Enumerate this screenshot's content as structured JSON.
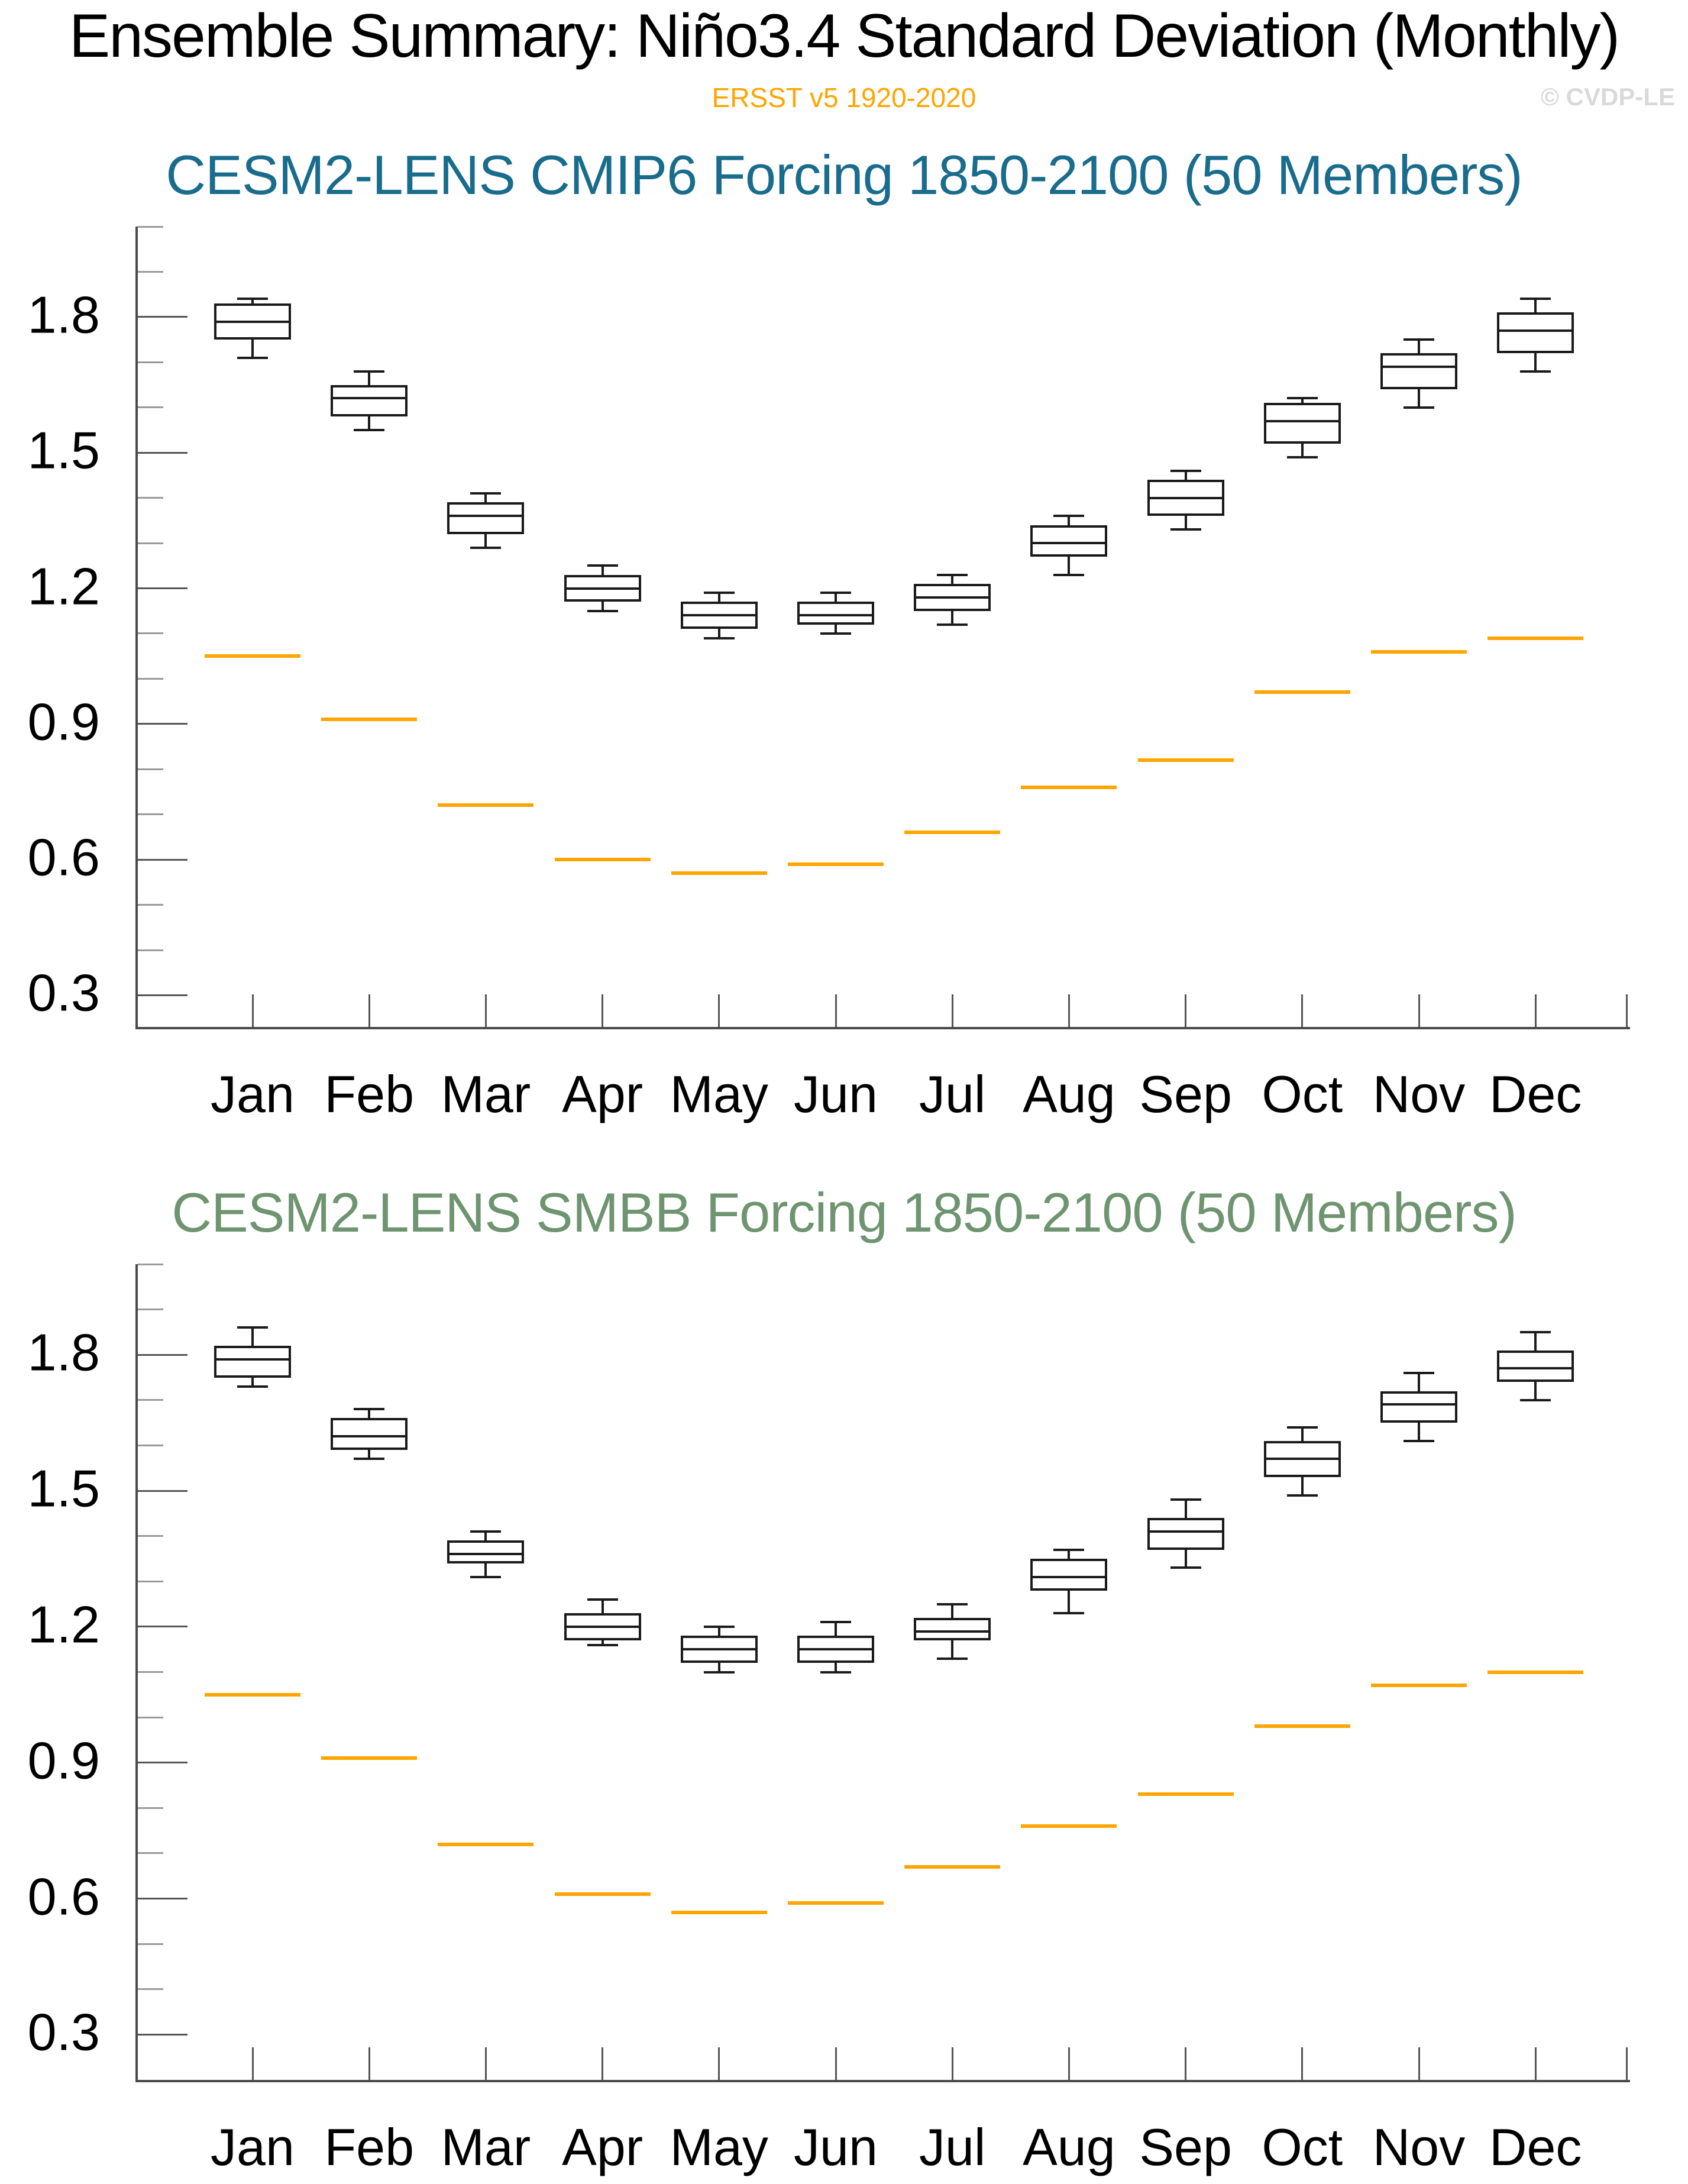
{
  "page": {
    "title": "Ensemble Summary: Niño3.4 Standard Deviation (Monthly)",
    "subtitle": "ERSST v5 1920-2020",
    "watermark": "© CVDP-LE"
  },
  "colors": {
    "subtitle_orange": "#FFA500",
    "obs_line_orange": "#FFA500",
    "watermark_gray": "#D9D9D9",
    "axis_gray": "#4A4A4A",
    "box_black": "#1A1A1A"
  },
  "chart_data": [
    {
      "type": "box",
      "title": "CESM2-LENS CMIP6 Forcing 1850-2100 (50 Members)",
      "title_color": "#196C8C",
      "categories": [
        "Jan",
        "Feb",
        "Mar",
        "Apr",
        "May",
        "Jun",
        "Jul",
        "Aug",
        "Sep",
        "Oct",
        "Nov",
        "Dec"
      ],
      "xlabel": "",
      "ylabel": "",
      "ylim": [
        0.23,
        2.0
      ],
      "yticks_major": [
        0.3,
        0.6,
        0.9,
        1.2,
        1.5,
        1.8
      ],
      "ytick_labels": [
        "0.3",
        "0.6",
        "0.9",
        "1.2",
        "1.5",
        "1.8"
      ],
      "minor_tick_step": 0.1,
      "grid": false,
      "legend_position": "none",
      "series": [
        {
          "name": "ensemble_spread",
          "stats": [
            {
              "month": "Jan",
              "whisker_low": 1.71,
              "q1": 1.75,
              "median": 1.79,
              "q3": 1.83,
              "whisker_high": 1.84
            },
            {
              "month": "Feb",
              "whisker_low": 1.55,
              "q1": 1.58,
              "median": 1.62,
              "q3": 1.65,
              "whisker_high": 1.68
            },
            {
              "month": "Mar",
              "whisker_low": 1.29,
              "q1": 1.32,
              "median": 1.36,
              "q3": 1.39,
              "whisker_high": 1.41
            },
            {
              "month": "Apr",
              "whisker_low": 1.15,
              "q1": 1.17,
              "median": 1.2,
              "q3": 1.23,
              "whisker_high": 1.25
            },
            {
              "month": "May",
              "whisker_low": 1.09,
              "q1": 1.11,
              "median": 1.14,
              "q3": 1.17,
              "whisker_high": 1.19
            },
            {
              "month": "Jun",
              "whisker_low": 1.1,
              "q1": 1.12,
              "median": 1.14,
              "q3": 1.17,
              "whisker_high": 1.19
            },
            {
              "month": "Jul",
              "whisker_low": 1.12,
              "q1": 1.15,
              "median": 1.18,
              "q3": 1.21,
              "whisker_high": 1.23
            },
            {
              "month": "Aug",
              "whisker_low": 1.23,
              "q1": 1.27,
              "median": 1.3,
              "q3": 1.34,
              "whisker_high": 1.36
            },
            {
              "month": "Sep",
              "whisker_low": 1.33,
              "q1": 1.36,
              "median": 1.4,
              "q3": 1.44,
              "whisker_high": 1.46
            },
            {
              "month": "Oct",
              "whisker_low": 1.49,
              "q1": 1.52,
              "median": 1.57,
              "q3": 1.61,
              "whisker_high": 1.62
            },
            {
              "month": "Nov",
              "whisker_low": 1.6,
              "q1": 1.64,
              "median": 1.69,
              "q3": 1.72,
              "whisker_high": 1.75
            },
            {
              "month": "Dec",
              "whisker_low": 1.68,
              "q1": 1.72,
              "median": 1.77,
              "q3": 1.81,
              "whisker_high": 1.84
            }
          ]
        }
      ],
      "obs_series": {
        "name": "ERSST v5 1920-2020",
        "color": "#FFA500",
        "values": [
          1.05,
          0.91,
          0.72,
          0.6,
          0.57,
          0.59,
          0.66,
          0.76,
          0.82,
          0.97,
          1.06,
          1.09
        ]
      }
    },
    {
      "type": "box",
      "title": "CESM2-LENS SMBB Forcing 1850-2100 (50 Members)",
      "title_color": "#6F9470",
      "categories": [
        "Jan",
        "Feb",
        "Mar",
        "Apr",
        "May",
        "Jun",
        "Jul",
        "Aug",
        "Sep",
        "Oct",
        "Nov",
        "Dec"
      ],
      "xlabel": "",
      "ylabel": "",
      "ylim": [
        0.2,
        2.0
      ],
      "yticks_major": [
        0.3,
        0.6,
        0.9,
        1.2,
        1.5,
        1.8
      ],
      "ytick_labels": [
        "0.3",
        "0.6",
        "0.9",
        "1.2",
        "1.5",
        "1.8"
      ],
      "minor_tick_step": 0.1,
      "grid": false,
      "legend_position": "none",
      "series": [
        {
          "name": "ensemble_spread",
          "stats": [
            {
              "month": "Jan",
              "whisker_low": 1.73,
              "q1": 1.75,
              "median": 1.79,
              "q3": 1.82,
              "whisker_high": 1.86
            },
            {
              "month": "Feb",
              "whisker_low": 1.57,
              "q1": 1.59,
              "median": 1.62,
              "q3": 1.66,
              "whisker_high": 1.68
            },
            {
              "month": "Mar",
              "whisker_low": 1.31,
              "q1": 1.34,
              "median": 1.36,
              "q3": 1.39,
              "whisker_high": 1.41
            },
            {
              "month": "Apr",
              "whisker_low": 1.16,
              "q1": 1.17,
              "median": 1.2,
              "q3": 1.23,
              "whisker_high": 1.26
            },
            {
              "month": "May",
              "whisker_low": 1.1,
              "q1": 1.12,
              "median": 1.15,
              "q3": 1.18,
              "whisker_high": 1.2
            },
            {
              "month": "Jun",
              "whisker_low": 1.1,
              "q1": 1.12,
              "median": 1.15,
              "q3": 1.18,
              "whisker_high": 1.21
            },
            {
              "month": "Jul",
              "whisker_low": 1.13,
              "q1": 1.17,
              "median": 1.19,
              "q3": 1.22,
              "whisker_high": 1.25
            },
            {
              "month": "Aug",
              "whisker_low": 1.23,
              "q1": 1.28,
              "median": 1.31,
              "q3": 1.35,
              "whisker_high": 1.37
            },
            {
              "month": "Sep",
              "whisker_low": 1.33,
              "q1": 1.37,
              "median": 1.41,
              "q3": 1.44,
              "whisker_high": 1.48
            },
            {
              "month": "Oct",
              "whisker_low": 1.49,
              "q1": 1.53,
              "median": 1.57,
              "q3": 1.61,
              "whisker_high": 1.64
            },
            {
              "month": "Nov",
              "whisker_low": 1.61,
              "q1": 1.65,
              "median": 1.69,
              "q3": 1.72,
              "whisker_high": 1.76
            },
            {
              "month": "Dec",
              "whisker_low": 1.7,
              "q1": 1.74,
              "median": 1.77,
              "q3": 1.81,
              "whisker_high": 1.85
            }
          ]
        }
      ],
      "obs_series": {
        "name": "ERSST v5 1920-2020",
        "color": "#FFA500",
        "values": [
          1.05,
          0.91,
          0.72,
          0.61,
          0.57,
          0.59,
          0.67,
          0.76,
          0.83,
          0.98,
          1.07,
          1.1
        ]
      }
    }
  ]
}
